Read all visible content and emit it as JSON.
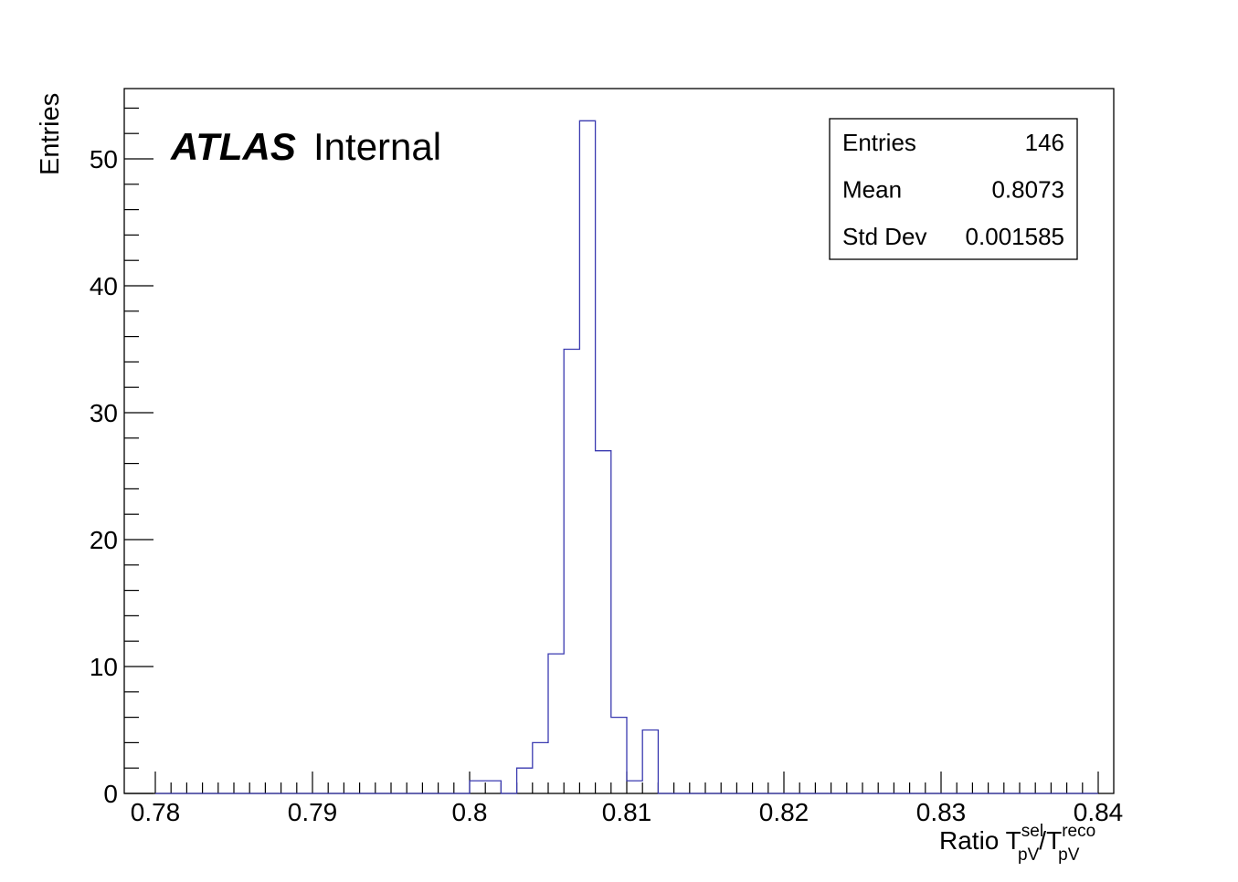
{
  "chart_data": {
    "type": "bar",
    "style": "step-histogram",
    "bin_width": 0.001,
    "x_min": 0.78,
    "x_max": 0.84,
    "xlim": [
      0.78,
      0.84
    ],
    "ylim": [
      0,
      55
    ],
    "x_ticks": [
      0.78,
      0.79,
      0.8,
      0.81,
      0.82,
      0.83,
      0.84
    ],
    "x_tick_labels": [
      "0.78",
      "0.79",
      "0.8",
      "0.81",
      "0.82",
      "0.83",
      "0.84"
    ],
    "y_ticks": [
      0,
      10,
      20,
      30,
      40,
      50
    ],
    "y_tick_labels": [
      "0",
      "10",
      "20",
      "30",
      "40",
      "50"
    ],
    "bins": [
      {
        "low": 0.8,
        "count": 1
      },
      {
        "low": 0.801,
        "count": 1
      },
      {
        "low": 0.802,
        "count": 0
      },
      {
        "low": 0.803,
        "count": 2
      },
      {
        "low": 0.804,
        "count": 4
      },
      {
        "low": 0.805,
        "count": 11
      },
      {
        "low": 0.806,
        "count": 35
      },
      {
        "low": 0.807,
        "count": 53
      },
      {
        "low": 0.808,
        "count": 27
      },
      {
        "low": 0.809,
        "count": 6
      },
      {
        "low": 0.81,
        "count": 1
      },
      {
        "low": 0.811,
        "count": 5
      }
    ],
    "xlabel": {
      "prefix": "Ratio T",
      "sup1": "sel",
      "sub1": "pV",
      "mid": "/T",
      "sup2": "reco",
      "sub2": "pV"
    },
    "ylabel": "Entries",
    "line_color": "#3a3ab0",
    "grid": false,
    "label": {
      "experiment": "ATLAS",
      "status": "Internal"
    },
    "stats": [
      {
        "name": "Entries",
        "value": "146"
      },
      {
        "name": "Mean",
        "value": "0.8073"
      },
      {
        "name": "Std Dev",
        "value": "0.001585"
      }
    ]
  }
}
